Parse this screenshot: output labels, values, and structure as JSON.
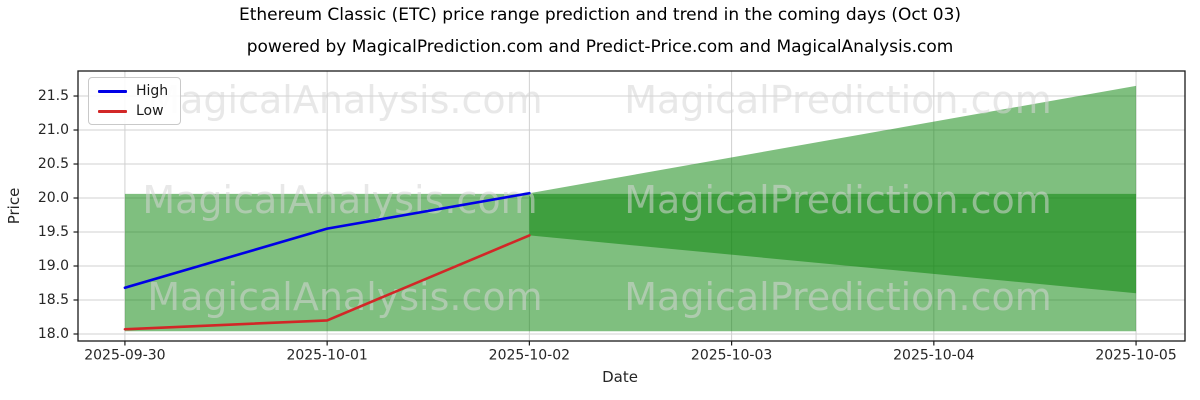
{
  "title": "Ethereum Classic (ETC) price range prediction and trend in the coming days (Oct 03)",
  "subtitle": "powered by MagicalPrediction.com and Predict-Price.com and MagicalAnalysis.com",
  "watermarks": {
    "left": "MagicalAnalysis.com",
    "right": "MagicalPrediction.com"
  },
  "chart_data": {
    "type": "line",
    "title": "Ethereum Classic (ETC) price range prediction and trend in the coming days (Oct 03)",
    "xlabel": "Date",
    "ylabel": "Price",
    "x_tick_labels": [
      "2025-09-30",
      "2025-10-01",
      "2025-10-02",
      "2025-10-03",
      "2025-10-04",
      "2025-10-05"
    ],
    "y_ticks": [
      18.0,
      18.5,
      19.0,
      19.5,
      20.0,
      20.5,
      21.0,
      21.5
    ],
    "y_tick_labels": [
      "18.0",
      "18.5",
      "19.0",
      "19.5",
      "20.0",
      "20.5",
      "21.0",
      "21.5"
    ],
    "xlim": [
      -0.232,
      5.242
    ],
    "ylim": [
      17.897,
      21.868
    ],
    "grid": true,
    "series": [
      {
        "name": "High",
        "color": "#0000e6",
        "x": [
          0,
          1,
          2
        ],
        "values": [
          18.68,
          19.55,
          20.07
        ]
      },
      {
        "name": "Low",
        "color": "#d22727",
        "x": [
          0,
          1,
          2
        ],
        "values": [
          18.07,
          18.2,
          19.45
        ]
      }
    ],
    "bands": [
      {
        "name": "historical-range",
        "x": [
          0,
          5
        ],
        "lower": [
          18.04,
          18.04
        ],
        "upper": [
          20.06,
          20.06
        ],
        "color": "#008000",
        "opacity": 0.5
      },
      {
        "name": "forecast-range",
        "x": [
          2,
          5
        ],
        "lower": [
          19.45,
          18.6
        ],
        "upper": [
          20.07,
          21.65
        ],
        "color": "#008000",
        "opacity": 0.5
      }
    ],
    "legend": {
      "position": "top-left",
      "entries": [
        {
          "label": "High",
          "color": "#0000e6"
        },
        {
          "label": "Low",
          "color": "#d22727"
        }
      ]
    },
    "colors": {
      "grid": "#d0d0d0",
      "spine": "#1a1a1a",
      "tick_label": "#262626",
      "fill_green": "#008000",
      "watermark": "#d6d6d6"
    }
  }
}
